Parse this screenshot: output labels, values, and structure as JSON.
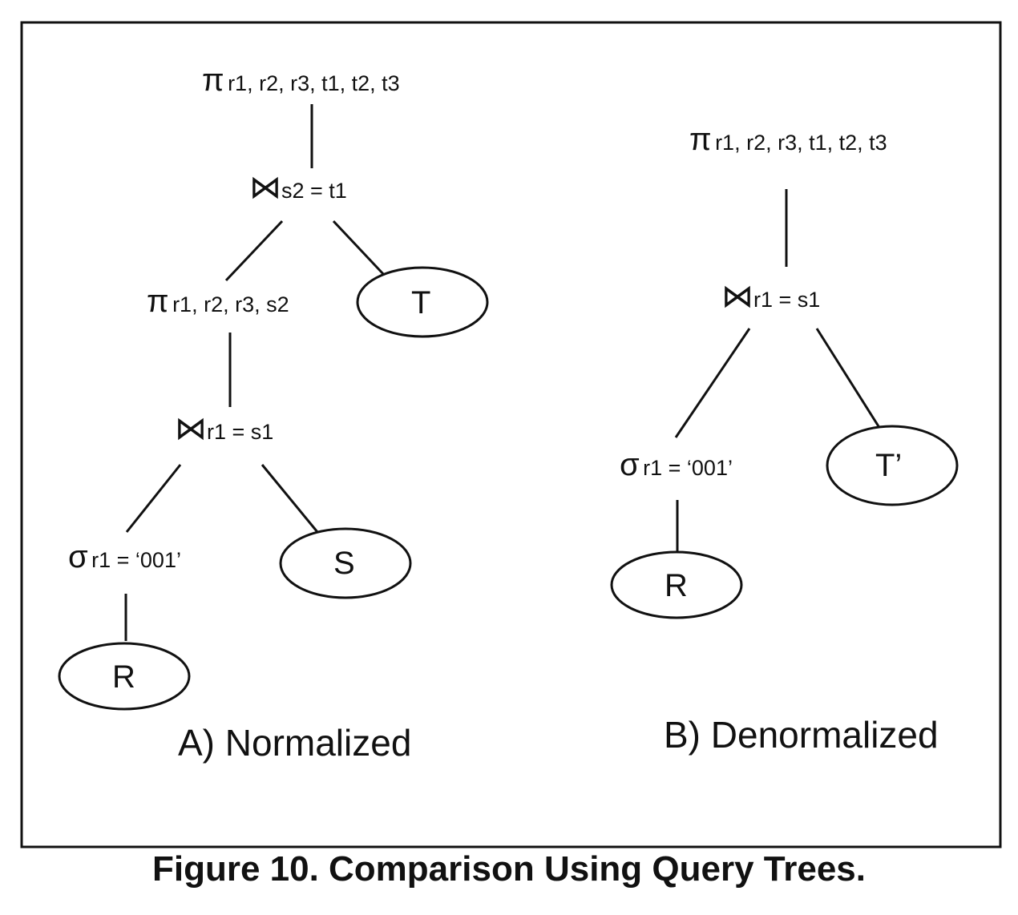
{
  "symbols": {
    "projection": "π",
    "join": "⋈",
    "selection": "σ"
  },
  "tree_a": {
    "caption": "A) Normalized",
    "root_projection": "r1, r2, r3, t1, t2, t3",
    "top_join": "s2 = t1",
    "inner_projection": "r1, r2, r3, s2",
    "inner_join": "r1 = s1",
    "selection": "r1 = ‘001’",
    "relation_t": "T",
    "relation_s": "S",
    "relation_r": "R"
  },
  "tree_b": {
    "caption": "B) Denormalized",
    "root_projection": "r1, r2, r3, t1, t2, t3",
    "join": "r1 = s1",
    "selection": "r1 = ‘001’",
    "relation_t": "T’",
    "relation_r": "R"
  },
  "figure_caption": "Figure 10. Comparison Using Query Trees."
}
